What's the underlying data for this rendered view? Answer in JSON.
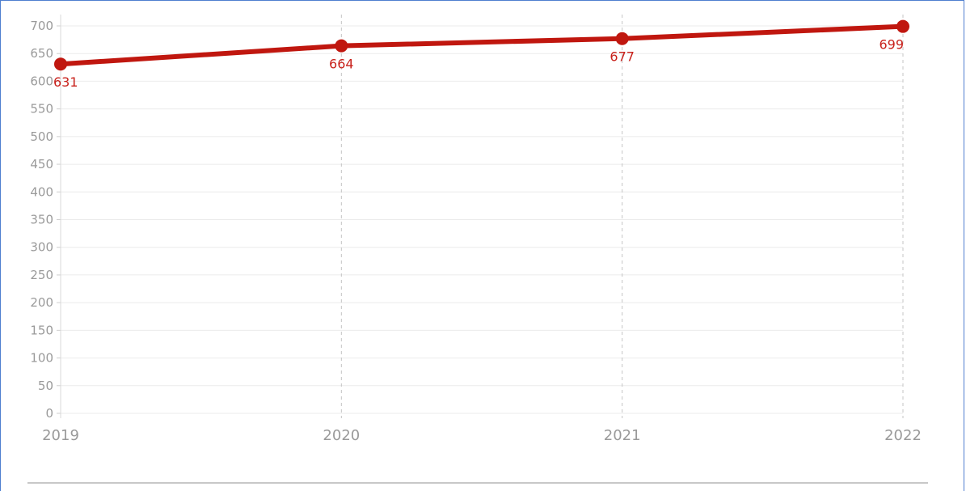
{
  "chart_data": {
    "type": "line",
    "title": "",
    "xlabel": "",
    "ylabel": "",
    "categories": [
      "2019",
      "2020",
      "2021",
      "2022"
    ],
    "series": [
      {
        "values": [
          631,
          664,
          677,
          699
        ],
        "color": "#c0170f"
      }
    ],
    "ylim": [
      0,
      700
    ],
    "yticks": [
      0,
      50,
      100,
      150,
      200,
      250,
      300,
      350,
      400,
      450,
      500,
      550,
      600,
      650,
      700
    ],
    "grid": true,
    "vertical_grid_style": "dashed",
    "legend": "none",
    "data_labels": [
      "631",
      "664",
      "677",
      "699"
    ]
  },
  "colors": {
    "line": "#c0170f",
    "label": "#c8201a",
    "grid": "#ebebeb",
    "tick_text": "#9a9a9a",
    "frame": "#4f7fcf"
  }
}
